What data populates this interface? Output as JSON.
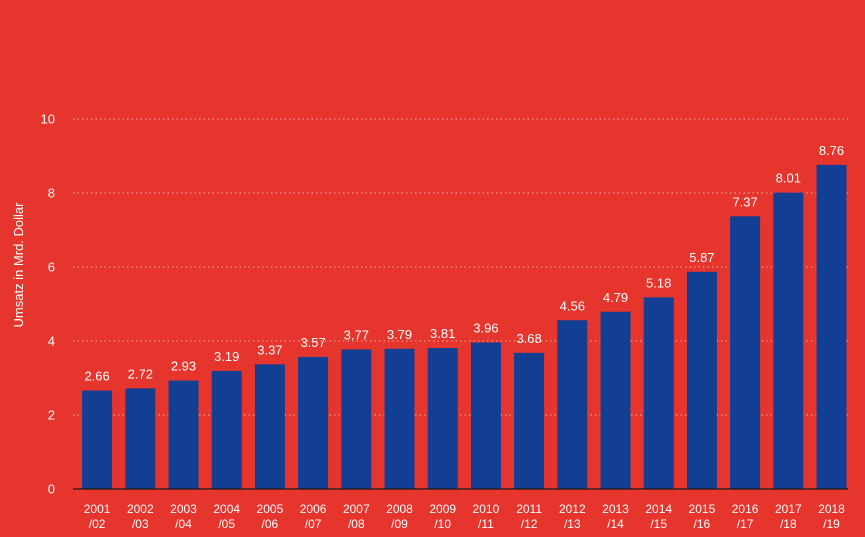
{
  "chart_data": {
    "type": "bar",
    "title": "",
    "xlabel": "",
    "ylabel": "Umsatz in Mrd. Dollar",
    "ylim": [
      0,
      10
    ],
    "yticks": [
      0,
      2,
      4,
      6,
      8,
      10
    ],
    "grid": true,
    "categories": [
      [
        "2001",
        "/02"
      ],
      [
        "2002",
        "/03"
      ],
      [
        "2003",
        "/04"
      ],
      [
        "2004",
        "/05"
      ],
      [
        "2005",
        "/06"
      ],
      [
        "2006",
        "/07"
      ],
      [
        "2007",
        "/08"
      ],
      [
        "2008",
        "/09"
      ],
      [
        "2009",
        "/10"
      ],
      [
        "2010",
        "/11"
      ],
      [
        "2011",
        "/12"
      ],
      [
        "2012",
        "/13"
      ],
      [
        "2013",
        "/14"
      ],
      [
        "2014",
        "/15"
      ],
      [
        "2015",
        "/16"
      ],
      [
        "2016",
        "/17"
      ],
      [
        "2017",
        "/18"
      ],
      [
        "2018",
        "/19"
      ]
    ],
    "values": [
      2.66,
      2.72,
      2.93,
      3.19,
      3.37,
      3.57,
      3.77,
      3.79,
      3.81,
      3.96,
      3.68,
      4.56,
      4.79,
      5.18,
      5.87,
      7.37,
      8.01,
      8.76
    ],
    "colors": {
      "background": "#e5352d",
      "bar": "#123f93",
      "text": "#ffffff",
      "grid": "#f2b1ab"
    }
  }
}
